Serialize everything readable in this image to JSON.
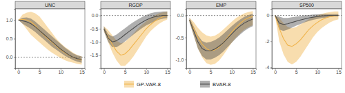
{
  "chart_data": {
    "type": "line",
    "x": [
      0,
      1,
      2,
      3,
      4,
      5,
      6,
      7,
      8,
      9,
      10,
      11,
      12,
      13,
      14,
      15
    ],
    "xlim": [
      -0.75,
      15.75
    ],
    "xticks": [
      0,
      5,
      10,
      15
    ],
    "hline": 0,
    "grid": false,
    "legend": "bottom",
    "series": [
      {
        "name": "GP-VAR-8",
        "color": "#f0b44c"
      },
      {
        "name": "BVAR-8",
        "color": "#4d4d4d"
      }
    ],
    "panels": [
      {
        "title": "UNC",
        "ylim": [
          -0.3,
          1.3
        ],
        "yticks": [
          {
            "value": 0,
            "label": "0.0"
          },
          {
            "value": 0.5,
            "label": "0.5"
          },
          {
            "value": 1,
            "label": "1.0"
          }
        ],
        "series": [
          {
            "values": [
              1.0,
              1.02,
              1.0,
              0.95,
              0.85,
              0.72,
              0.6,
              0.5,
              0.4,
              0.3,
              0.2,
              0.12,
              0.05,
              0.0,
              -0.05,
              -0.08
            ],
            "lower": [
              1.0,
              0.9,
              0.75,
              0.6,
              0.5,
              0.4,
              0.3,
              0.2,
              0.12,
              0.05,
              -0.02,
              -0.08,
              -0.12,
              -0.15,
              -0.18,
              -0.2
            ],
            "upper": [
              1.0,
              1.15,
              1.2,
              1.22,
              1.18,
              1.1,
              0.95,
              0.8,
              0.65,
              0.5,
              0.38,
              0.28,
              0.2,
              0.12,
              0.06,
              0.02
            ]
          },
          {
            "values": [
              1.0,
              0.98,
              0.95,
              0.9,
              0.82,
              0.72,
              0.62,
              0.52,
              0.42,
              0.32,
              0.22,
              0.14,
              0.06,
              0.0,
              -0.04,
              -0.06
            ],
            "lower": [
              1.0,
              0.9,
              0.83,
              0.76,
              0.68,
              0.58,
              0.48,
              0.38,
              0.28,
              0.2,
              0.12,
              0.04,
              -0.02,
              -0.08,
              -0.12,
              -0.15
            ],
            "upper": [
              1.0,
              1.06,
              1.07,
              1.04,
              0.96,
              0.86,
              0.76,
              0.66,
              0.56,
              0.46,
              0.36,
              0.26,
              0.18,
              0.1,
              0.05,
              0.02
            ]
          }
        ]
      },
      {
        "title": "RGDP",
        "ylim": [
          -2.0,
          0.25
        ],
        "yticks": [
          {
            "value": -1.5,
            "label": "-1.5"
          },
          {
            "value": -1,
            "label": "-1.0"
          },
          {
            "value": -0.5,
            "label": "-0.5"
          },
          {
            "value": 0,
            "label": "0.0"
          }
        ],
        "series": [
          {
            "values": [
              -0.5,
              -0.8,
              -1.1,
              -1.35,
              -1.5,
              -1.45,
              -1.3,
              -1.1,
              -0.9,
              -0.7,
              -0.5,
              -0.35,
              -0.22,
              -0.12,
              -0.05,
              0.0
            ],
            "lower": [
              -0.6,
              -1.0,
              -1.4,
              -1.7,
              -1.9,
              -1.9,
              -1.75,
              -1.55,
              -1.3,
              -1.05,
              -0.8,
              -0.6,
              -0.45,
              -0.32,
              -0.22,
              -0.15
            ],
            "upper": [
              -0.4,
              -0.55,
              -0.75,
              -0.95,
              -1.05,
              -1.0,
              -0.85,
              -0.68,
              -0.5,
              -0.35,
              -0.22,
              -0.1,
              0.0,
              0.08,
              0.12,
              0.15
            ]
          },
          {
            "values": [
              -0.5,
              -0.85,
              -1.0,
              -0.95,
              -0.85,
              -0.72,
              -0.6,
              -0.48,
              -0.36,
              -0.26,
              -0.17,
              -0.1,
              -0.05,
              -0.02,
              0.0,
              0.0
            ],
            "lower": [
              -0.6,
              -1.0,
              -1.2,
              -1.2,
              -1.1,
              -0.98,
              -0.85,
              -0.72,
              -0.6,
              -0.48,
              -0.38,
              -0.3,
              -0.22,
              -0.16,
              -0.12,
              -0.1
            ],
            "upper": [
              -0.4,
              -0.7,
              -0.8,
              -0.72,
              -0.6,
              -0.48,
              -0.36,
              -0.25,
              -0.15,
              -0.06,
              0.02,
              0.08,
              0.12,
              0.14,
              0.15,
              0.15
            ]
          }
        ]
      },
      {
        "title": "EMP",
        "ylim": [
          -1.2,
          0.15
        ],
        "yticks": [
          {
            "value": -1,
            "label": "-1.0"
          },
          {
            "value": -0.5,
            "label": "-0.5"
          },
          {
            "value": 0,
            "label": "0.0"
          }
        ],
        "series": [
          {
            "values": [
              -0.1,
              -0.3,
              -0.5,
              -0.65,
              -0.75,
              -0.8,
              -0.78,
              -0.72,
              -0.62,
              -0.5,
              -0.38,
              -0.27,
              -0.18,
              -0.1,
              -0.05,
              -0.02
            ],
            "lower": [
              -0.15,
              -0.45,
              -0.75,
              -0.95,
              -1.08,
              -1.12,
              -1.1,
              -1.02,
              -0.9,
              -0.76,
              -0.62,
              -0.5,
              -0.4,
              -0.32,
              -0.26,
              -0.22
            ],
            "upper": [
              -0.05,
              -0.15,
              -0.28,
              -0.38,
              -0.45,
              -0.48,
              -0.46,
              -0.4,
              -0.32,
              -0.23,
              -0.14,
              -0.06,
              0.0,
              0.05,
              0.08,
              0.1
            ]
          },
          {
            "values": [
              -0.1,
              -0.35,
              -0.6,
              -0.75,
              -0.8,
              -0.8,
              -0.76,
              -0.7,
              -0.62,
              -0.52,
              -0.42,
              -0.32,
              -0.24,
              -0.17,
              -0.12,
              -0.08
            ],
            "lower": [
              -0.15,
              -0.45,
              -0.75,
              -0.92,
              -1.0,
              -1.0,
              -0.96,
              -0.9,
              -0.82,
              -0.72,
              -0.62,
              -0.52,
              -0.43,
              -0.35,
              -0.29,
              -0.24
            ],
            "upper": [
              -0.05,
              -0.25,
              -0.45,
              -0.58,
              -0.62,
              -0.6,
              -0.56,
              -0.5,
              -0.42,
              -0.33,
              -0.24,
              -0.16,
              -0.09,
              -0.03,
              0.01,
              0.04
            ]
          }
        ]
      },
      {
        "title": "SP500",
        "ylim": [
          -4.1,
          0.5
        ],
        "yticks": [
          -4,
          -2,
          0
        ],
        "series": [
          {
            "values": [
              0,
              -1.0,
              -1.8,
              -2.3,
              -2.4,
              -2.2,
              -1.9,
              -1.5,
              -1.1,
              -0.8,
              -0.55,
              -0.35,
              -0.2,
              -0.1,
              -0.05,
              0.0
            ],
            "lower": [
              0,
              -2.0,
              -3.0,
              -3.6,
              -3.8,
              -3.6,
              -3.2,
              -2.7,
              -2.2,
              -1.7,
              -1.3,
              -1.0,
              -0.75,
              -0.55,
              -0.4,
              -0.3
            ],
            "upper": [
              0,
              -0.2,
              -0.6,
              -0.9,
              -1.0,
              -0.9,
              -0.7,
              -0.5,
              -0.3,
              -0.15,
              0.0,
              0.1,
              0.2,
              0.25,
              0.3,
              0.3
            ]
          },
          {
            "values": [
              0,
              -0.6,
              -0.7,
              -0.65,
              -0.55,
              -0.45,
              -0.36,
              -0.28,
              -0.2,
              -0.14,
              -0.09,
              -0.05,
              -0.02,
              0.0,
              0.0,
              0.0
            ],
            "lower": [
              0,
              -1.1,
              -1.2,
              -1.1,
              -0.95,
              -0.8,
              -0.67,
              -0.55,
              -0.44,
              -0.35,
              -0.28,
              -0.22,
              -0.17,
              -0.13,
              -0.1,
              -0.08
            ],
            "upper": [
              0,
              -0.1,
              -0.2,
              -0.2,
              -0.15,
              -0.1,
              -0.05,
              0.0,
              0.03,
              0.06,
              0.08,
              0.09,
              0.1,
              0.1,
              0.1,
              0.1
            ]
          }
        ]
      }
    ]
  }
}
